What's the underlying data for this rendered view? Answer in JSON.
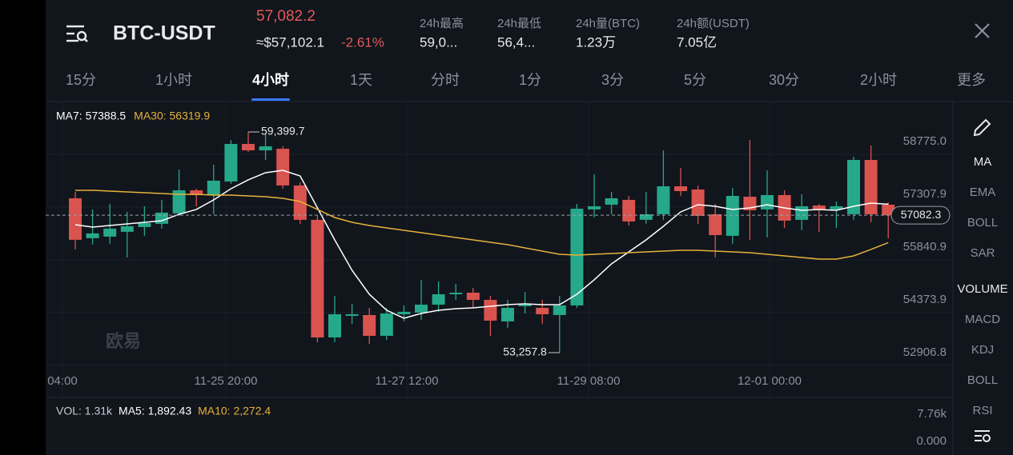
{
  "header": {
    "symbol": "BTC-USDT",
    "price": "57,082.2",
    "usd_price": "≈$57,102.1",
    "change": "-2.61%",
    "stats": [
      {
        "label": "24h最高",
        "value": "59,0..."
      },
      {
        "label": "24h最低",
        "value": "56,4..."
      },
      {
        "label": "24h量(BTC)",
        "value": "1.23万"
      },
      {
        "label": "24h额(USDT)",
        "value": "7.05亿"
      }
    ]
  },
  "tabs": [
    {
      "label": "15分"
    },
    {
      "label": "1小时"
    },
    {
      "label": "4小时",
      "active": true
    },
    {
      "label": "1天"
    },
    {
      "label": "分时"
    },
    {
      "label": "1分"
    },
    {
      "label": "3分"
    },
    {
      "label": "5分"
    },
    {
      "label": "30分"
    },
    {
      "label": "2小时"
    },
    {
      "label": "更多"
    }
  ],
  "side_menu": [
    {
      "label": "MA",
      "active": true
    },
    {
      "label": "EMA"
    },
    {
      "label": "BOLL"
    },
    {
      "label": "SAR"
    },
    {
      "label": "VOLUME",
      "active": true
    },
    {
      "label": "MACD"
    },
    {
      "label": "KDJ"
    },
    {
      "label": "BOLL"
    },
    {
      "label": "RSI"
    }
  ],
  "watermark": "欧易",
  "chart_data": {
    "type": "candlestick",
    "up_color": "#26a88a",
    "down_color": "#d9534f",
    "x_labels": [
      "04:00",
      "11-25 20:00",
      "11-27 12:00",
      "11-29 08:00",
      "12-01 00:00"
    ],
    "candles": {
      "open": [
        57554,
        56443,
        56487,
        56621,
        56754,
        56843,
        57132,
        57776,
        57643,
        58021,
        59065,
        58887,
        58932,
        57910,
        56954,
        53681,
        54282,
        54305,
        53726,
        54327,
        54372,
        54594,
        54883,
        54927,
        54727,
        54127,
        54550,
        54505,
        54305,
        54572,
        57243,
        57375,
        57509,
        56954,
        57109,
        57887,
        57798,
        57109,
        56508,
        57598,
        57243,
        57643,
        56954,
        57353,
        57243,
        57109,
        58621,
        57375
      ],
      "high": [
        57732,
        57243,
        57398,
        57176,
        57332,
        57509,
        58354,
        57821,
        58487,
        59176,
        59399.7,
        59332,
        58999,
        57999,
        57065,
        54838,
        54616,
        54505,
        54505,
        54572,
        55284,
        55239,
        55172,
        55061,
        54838,
        54727,
        54950,
        54727,
        54838,
        57398,
        58221,
        57732,
        57620,
        57732,
        58888,
        58399,
        57910,
        57398,
        57843,
        59177,
        58332,
        57776,
        57665,
        57398,
        57464,
        58710,
        59021,
        57442
      ],
      "low": [
        56131,
        56265,
        56287,
        55909,
        56509,
        56710,
        57065,
        57332,
        57109,
        57954,
        58843,
        58621,
        57821,
        56843,
        53548,
        53548,
        54060,
        53504,
        53615,
        54127,
        54171,
        54394,
        54727,
        54505,
        53726,
        53948,
        54349,
        54060,
        53257.8,
        54505,
        57020,
        57109,
        56796,
        56843,
        56954,
        57620,
        56843,
        55909,
        56287,
        56396,
        56463,
        56730,
        56663,
        56619,
        56730,
        56954,
        56886,
        56441
      ],
      "close": [
        56398,
        56576,
        56710,
        56776,
        56865,
        57154,
        57776,
        57643,
        58043,
        59065,
        58887,
        58999,
        57910,
        56954,
        53681,
        54327,
        54327,
        53726,
        54349,
        54394,
        54594,
        54883,
        54927,
        54727,
        54149,
        54505,
        54594,
        54327,
        54572,
        57264,
        57332,
        57553,
        56908,
        57109,
        57887,
        57753,
        57065,
        56529,
        57620,
        57219,
        57643,
        56932,
        57332,
        57219,
        57332,
        58621,
        57109,
        57082.3
      ]
    },
    "series": [
      {
        "name": "MA7: 57388.5",
        "color": "#ffffff",
        "values": [
          56819,
          56752,
          56797,
          56841,
          56886,
          56930,
          57108,
          57242,
          57509,
          57820,
          58065,
          58265,
          58332,
          58176,
          57286,
          56396,
          55551,
          54883,
          54438,
          54216,
          54349,
          54438,
          54483,
          54505,
          54550,
          54594,
          54616,
          54594,
          54594,
          54883,
          55284,
          55729,
          56062,
          56396,
          56774,
          57175,
          57375,
          57331,
          57242,
          57286,
          57375,
          57286,
          57219,
          57242,
          57219,
          57331,
          57420,
          57388.5
        ]
      },
      {
        "name": "MA30: 56319.9",
        "color": "#e6b23a",
        "values": [
          57776,
          57776,
          57753,
          57731,
          57709,
          57687,
          57664,
          57664,
          57642,
          57642,
          57620,
          57598,
          57553,
          57464,
          57242,
          57019,
          56886,
          56797,
          56730,
          56663,
          56596,
          56530,
          56463,
          56396,
          56329,
          56263,
          56174,
          56085,
          55996,
          55973,
          55996,
          56018,
          56040,
          56062,
          56085,
          56107,
          56107,
          56085,
          56062,
          56040,
          55996,
          55951,
          55907,
          55862,
          55862,
          55951,
          56129,
          56319.9
        ]
      }
    ],
    "high_label": "59,399.7",
    "low_label": "53,257.8",
    "last_price": 57082.3,
    "ylim": [
      52613,
      60067
    ],
    "yticks": [
      {
        "value": 58775,
        "label": "58775.0"
      },
      57307.9,
      55840.9,
      54373.9,
      52906.8
    ],
    "grid": true
  },
  "volume": {
    "title": "VOL: 1.31k",
    "ma": [
      {
        "label": "MA5: 1,892.43",
        "color": "#ffffff"
      },
      {
        "label": "MA10: 2,272.4",
        "color": "#e6b23a"
      }
    ],
    "yticks": [
      "7.76k",
      "0.000"
    ]
  }
}
